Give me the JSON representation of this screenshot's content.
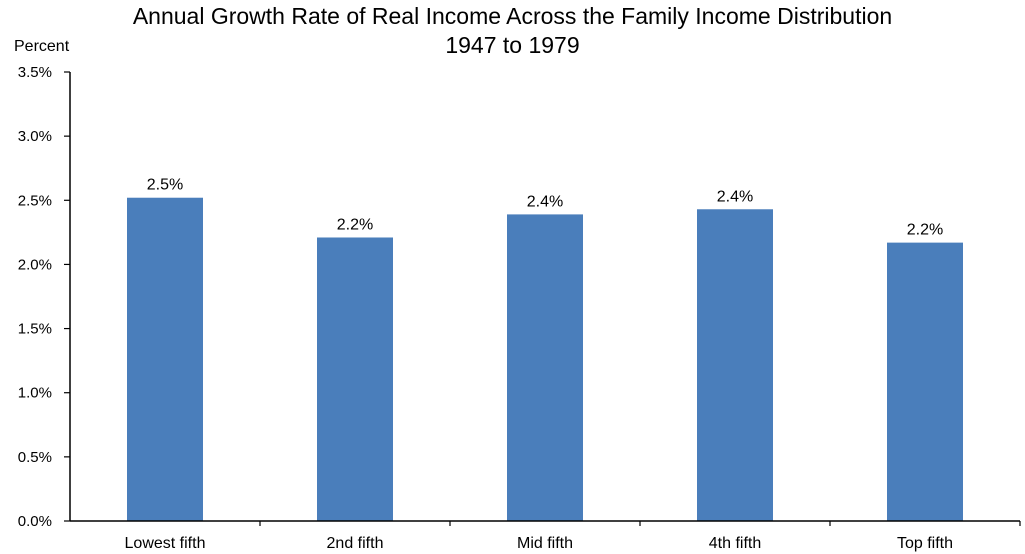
{
  "chart_data": {
    "type": "bar",
    "title": "Annual Growth Rate of Real Income Across the Family Income Distribution",
    "subtitle": "1947 to 1979",
    "ylabel": "Percent",
    "xlabel": "",
    "categories": [
      "Lowest fifth",
      "2nd fifth",
      "Mid fifth",
      "4th fifth",
      "Top fifth"
    ],
    "values": [
      2.52,
      2.21,
      2.39,
      2.43,
      2.17
    ],
    "data_labels": [
      "2.5%",
      "2.2%",
      "2.4%",
      "2.4%",
      "2.2%"
    ],
    "ylim": [
      0,
      3.5
    ],
    "yticks": [
      0,
      0.5,
      1.0,
      1.5,
      2.0,
      2.5,
      3.0,
      3.5
    ],
    "ytick_labels": [
      "0.0%",
      "0.5%",
      "1.0%",
      "1.5%",
      "2.0%",
      "2.5%",
      "3.0%",
      "3.5%"
    ],
    "grid": false,
    "legend": "none",
    "bar_color": "#4a7ebb"
  }
}
